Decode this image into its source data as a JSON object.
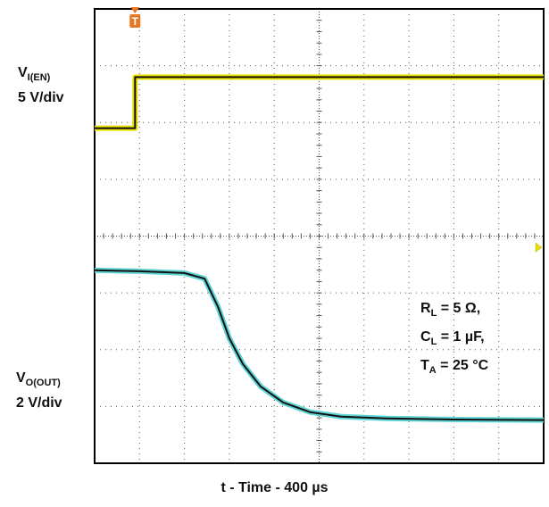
{
  "chart_data": {
    "type": "line",
    "xlabel": "t - Time - 400 µs",
    "grid": true,
    "grid_divisions": {
      "x": 10,
      "y": 8
    },
    "trigger_marker": "T",
    "colors": {
      "enable_trace": "#e8e000",
      "output_trace": "#5fd3d3",
      "trigger": "#e87722",
      "grid": "#555555"
    },
    "channels": [
      {
        "name_main": "V",
        "name_sub": "I(EN)",
        "scale": "5 V/div",
        "description_points_unit": "divisions",
        "points": [
          [
            0,
            5.9
          ],
          [
            0.9,
            5.9
          ],
          [
            0.9,
            6.8
          ],
          [
            10,
            6.8
          ]
        ]
      },
      {
        "name_main": "V",
        "name_sub": "O(OUT)",
        "scale": "2 V/div",
        "description_points_unit": "divisions",
        "points": [
          [
            0,
            3.4
          ],
          [
            1.0,
            3.38
          ],
          [
            2.0,
            3.35
          ],
          [
            2.45,
            3.25
          ],
          [
            2.75,
            2.75
          ],
          [
            3.0,
            2.2
          ],
          [
            3.3,
            1.75
          ],
          [
            3.7,
            1.35
          ],
          [
            4.2,
            1.07
          ],
          [
            4.8,
            0.9
          ],
          [
            5.5,
            0.82
          ],
          [
            6.5,
            0.79
          ],
          [
            8.0,
            0.77
          ],
          [
            10,
            0.76
          ]
        ]
      }
    ],
    "conditions": [
      {
        "main": "R",
        "sub": "L",
        "value": " = 5 Ω,"
      },
      {
        "main": "C",
        "sub": "L",
        "value": " = 1 µF,"
      },
      {
        "main": "T",
        "sub": "A",
        "value": " = 25 °C"
      }
    ]
  }
}
